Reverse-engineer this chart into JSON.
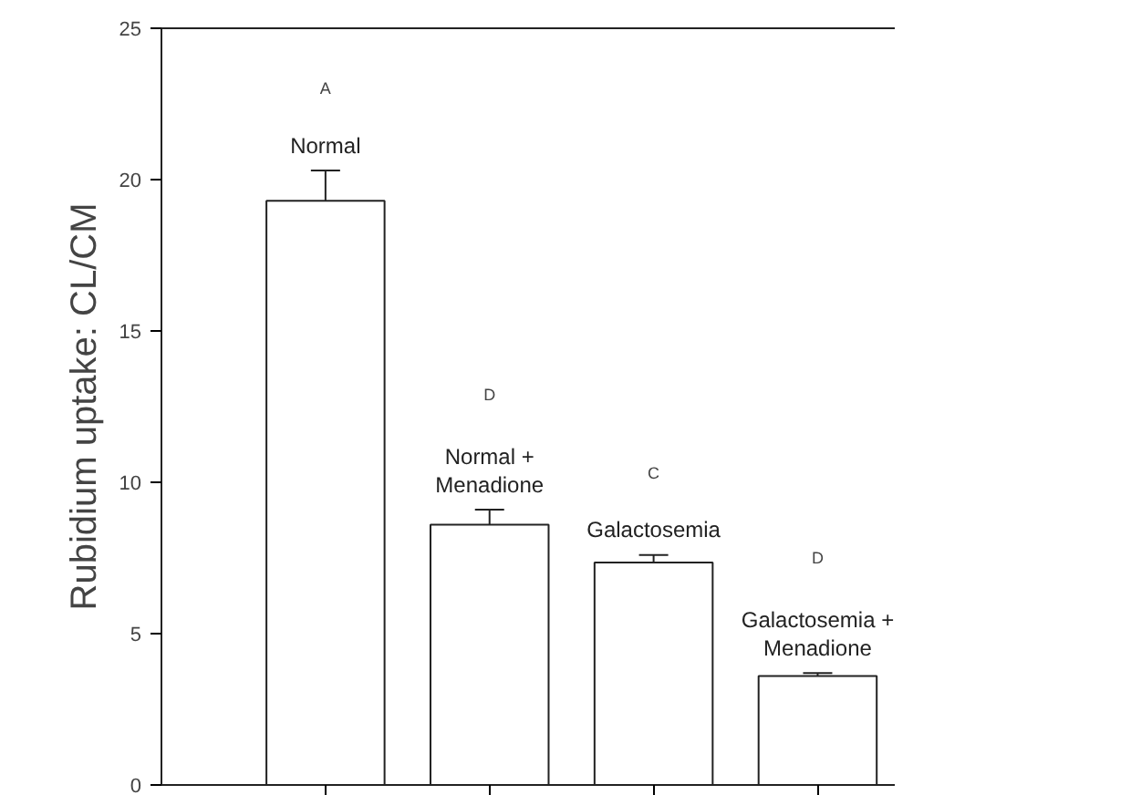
{
  "chart_data": {
    "type": "bar",
    "ylabel": "Rubidium uptake: CL/CM",
    "categories": [
      "Normal",
      "Normal +\nMenadione",
      "Galactosemia",
      "Galactosemia +\nMenadione"
    ],
    "values": [
      19.3,
      8.6,
      7.35,
      3.6
    ],
    "errors": [
      1.0,
      0.5,
      0.25,
      0.1
    ],
    "color": "#ffffff",
    "ylim": [
      0,
      25
    ],
    "yticks": [
      0,
      5,
      10,
      15,
      20,
      25
    ],
    "tick_labels": "y",
    "grid": false,
    "annotations": [
      "A",
      "D",
      "C",
      "D"
    ]
  }
}
